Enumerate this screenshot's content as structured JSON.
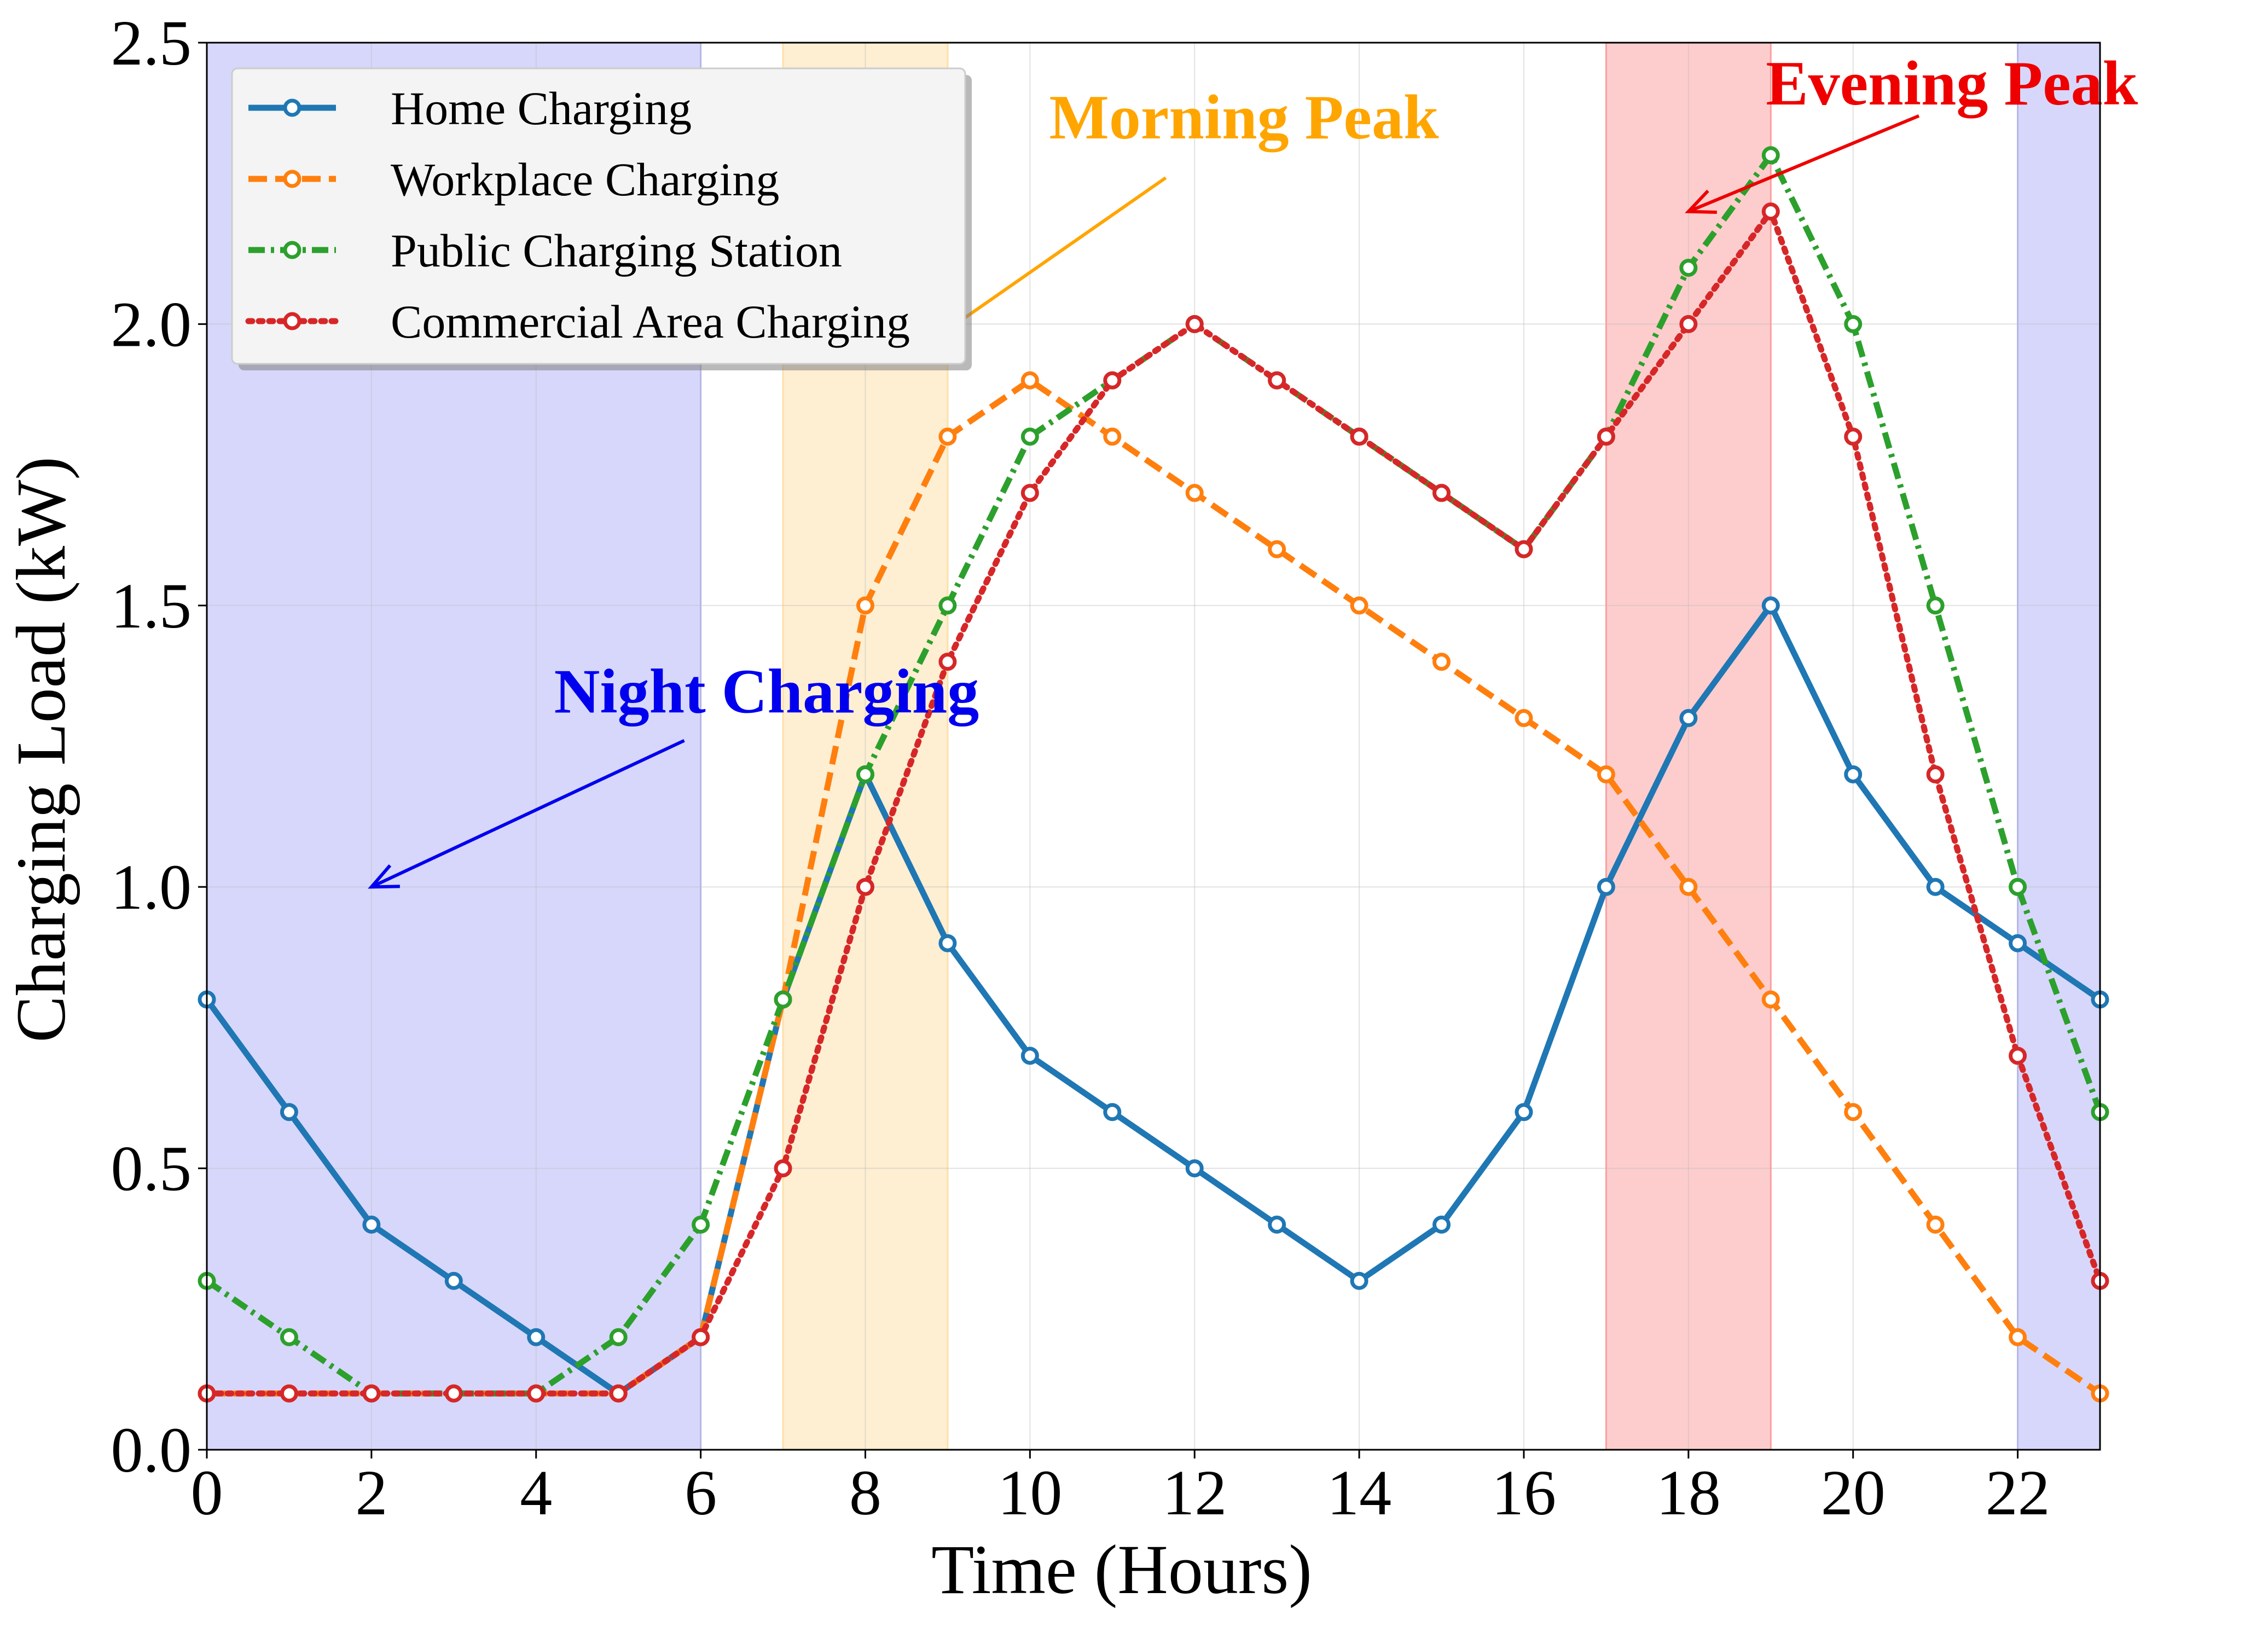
{
  "chart_data": {
    "type": "line",
    "title": "",
    "xlabel": "Time (Hours)",
    "ylabel": "Charging Load (kW)",
    "xlim": [
      0,
      23
    ],
    "ylim": [
      0,
      2.5
    ],
    "x_ticks": [
      0,
      2,
      4,
      6,
      8,
      10,
      12,
      14,
      16,
      18,
      20,
      22
    ],
    "y_ticks": [
      0.0,
      0.5,
      1.0,
      1.5,
      2.0,
      2.5
    ],
    "y_tick_labels": [
      "0.0",
      "0.5",
      "1.0",
      "1.5",
      "2.0",
      "2.5"
    ],
    "grid": true,
    "legend_position": "top-left",
    "x": [
      0,
      1,
      2,
      3,
      4,
      5,
      6,
      7,
      8,
      9,
      10,
      11,
      12,
      13,
      14,
      15,
      16,
      17,
      18,
      19,
      20,
      21,
      22,
      23
    ],
    "series": [
      {
        "name": "Home Charging",
        "color": "#1f77b4",
        "dash": "solid",
        "values": [
          0.8,
          0.6,
          0.4,
          0.3,
          0.2,
          0.1,
          0.2,
          0.8,
          1.2,
          0.9,
          0.7,
          0.6,
          0.5,
          0.4,
          0.3,
          0.4,
          0.6,
          1.0,
          1.3,
          1.5,
          1.2,
          1.0,
          0.9,
          0.8
        ]
      },
      {
        "name": "Workplace Charging",
        "color": "#ff7f0e",
        "dash": "dashed",
        "values": [
          0.1,
          0.1,
          0.1,
          0.1,
          0.1,
          0.1,
          0.2,
          0.8,
          1.5,
          1.8,
          1.9,
          1.8,
          1.7,
          1.6,
          1.5,
          1.4,
          1.3,
          1.2,
          1.0,
          0.8,
          0.6,
          0.4,
          0.2,
          0.1
        ]
      },
      {
        "name": "Public Charging Station",
        "color": "#2ca02c",
        "dash": "dashdot",
        "values": [
          0.3,
          0.2,
          0.1,
          0.1,
          0.1,
          0.2,
          0.4,
          0.8,
          1.2,
          1.5,
          1.8,
          1.9,
          2.0,
          1.9,
          1.8,
          1.7,
          1.6,
          1.8,
          2.1,
          2.3,
          2.0,
          1.5,
          1.0,
          0.6
        ]
      },
      {
        "name": "Commercial Area Charging",
        "color": "#d62728",
        "dash": "dotted",
        "values": [
          0.1,
          0.1,
          0.1,
          0.1,
          0.1,
          0.1,
          0.2,
          0.5,
          1.0,
          1.4,
          1.7,
          1.9,
          2.0,
          1.9,
          1.8,
          1.7,
          1.6,
          1.8,
          2.0,
          2.2,
          1.8,
          1.2,
          0.7,
          0.3
        ]
      }
    ],
    "shaded_regions": [
      {
        "name": "night-early",
        "x0": 0,
        "x1": 6,
        "color": "#b3b3f7"
      },
      {
        "name": "morning",
        "x0": 7,
        "x1": 9,
        "color": "#fedfa8"
      },
      {
        "name": "evening",
        "x0": 17,
        "x1": 19,
        "color": "#fb9f9f"
      },
      {
        "name": "night-late",
        "x0": 22,
        "x1": 23,
        "color": "#b3b3f7"
      }
    ],
    "annotations": [
      {
        "text": "Night Charging",
        "color": "#0000ee",
        "text_x": 6.8,
        "text_y": 1.31,
        "arrow_from": [
          5.8,
          1.26
        ],
        "arrow_to": [
          2.0,
          1.0
        ]
      },
      {
        "text": "Morning Peak",
        "color": "#ffa500",
        "text_x": 12.6,
        "text_y": 2.33,
        "arrow_from": [
          11.65,
          2.26
        ],
        "arrow_to": [
          9.1,
          2.0
        ]
      },
      {
        "text": "Evening Peak",
        "color": "#ee0000",
        "text_x": 21.2,
        "text_y": 2.39,
        "arrow_from": [
          20.8,
          2.37
        ],
        "arrow_to": [
          18.0,
          2.2
        ]
      }
    ]
  }
}
